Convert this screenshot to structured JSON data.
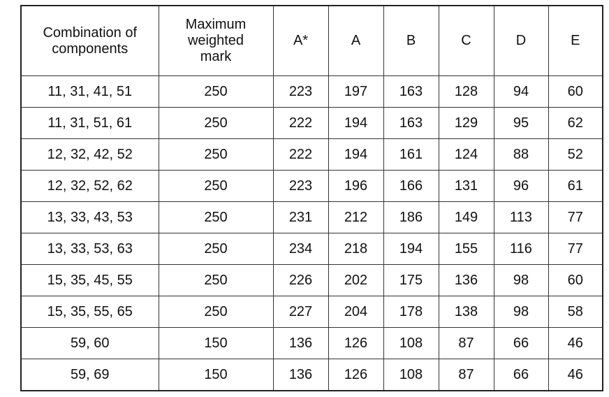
{
  "table": {
    "header": [
      "Combination of components",
      "Maximum weighted mark",
      "A*",
      "A",
      "B",
      "C",
      "D",
      "E"
    ],
    "rows": [
      [
        "11, 31, 41, 51",
        250,
        223,
        197,
        163,
        128,
        94,
        60
      ],
      [
        "11, 31, 51, 61",
        250,
        222,
        194,
        163,
        129,
        95,
        62
      ],
      [
        "12, 32, 42, 52",
        250,
        222,
        194,
        161,
        124,
        88,
        52
      ],
      [
        "12, 32, 52, 62",
        250,
        223,
        196,
        166,
        131,
        96,
        61
      ],
      [
        "13, 33, 43, 53",
        250,
        231,
        212,
        186,
        149,
        113,
        77
      ],
      [
        "13, 33, 53, 63",
        250,
        234,
        218,
        194,
        155,
        116,
        77
      ],
      [
        "15, 35, 45, 55",
        250,
        226,
        202,
        175,
        136,
        98,
        60
      ],
      [
        "15, 35, 55, 65",
        250,
        227,
        204,
        178,
        138,
        98,
        58
      ],
      [
        "59, 60",
        150,
        136,
        126,
        108,
        87,
        66,
        46
      ],
      [
        "59, 69",
        150,
        136,
        126,
        108,
        87,
        66,
        46
      ]
    ]
  }
}
